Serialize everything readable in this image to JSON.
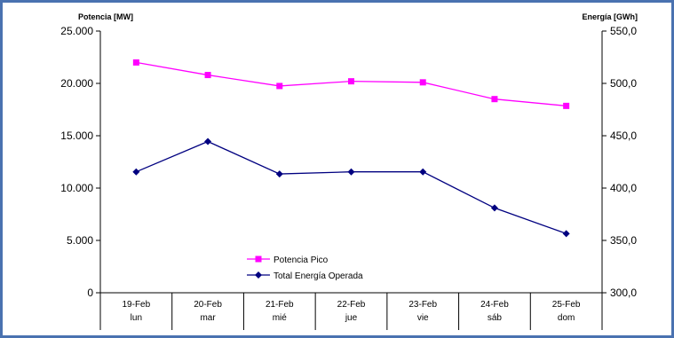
{
  "chart_data": {
    "type": "line",
    "title": "",
    "y_left": {
      "label": "Potencia [MW]",
      "ylim": [
        0,
        25000
      ],
      "ticks": [
        "0",
        "5.000",
        "10.000",
        "15.000",
        "20.000",
        "25.000"
      ]
    },
    "y_right": {
      "label": "Energía [GWh]",
      "ylim": [
        300,
        550
      ],
      "ticks": [
        "300,0",
        "350,0",
        "400,0",
        "450,0",
        "500,0",
        "550,0"
      ]
    },
    "categories": [
      {
        "date": "19-Feb",
        "day": "lun"
      },
      {
        "date": "20-Feb",
        "day": "mar"
      },
      {
        "date": "21-Feb",
        "day": "mié"
      },
      {
        "date": "22-Feb",
        "day": "jue"
      },
      {
        "date": "23-Feb",
        "day": "vie"
      },
      {
        "date": "24-Feb",
        "day": "sáb"
      },
      {
        "date": "25-Feb",
        "day": "dom"
      }
    ],
    "series": [
      {
        "name": "Potencia Pico",
        "axis": "left",
        "color": "#ff00ff",
        "marker": "square",
        "values": [
          22000,
          20800,
          19750,
          20200,
          20100,
          18500,
          17850
        ]
      },
      {
        "name": "Total Energía Operada",
        "axis": "right",
        "color": "#000080",
        "marker": "diamond",
        "values": [
          415.5,
          444.5,
          413.5,
          415.5,
          415.5,
          381.0,
          356.5
        ]
      }
    ],
    "grid": false,
    "legend": "bottom-center"
  }
}
